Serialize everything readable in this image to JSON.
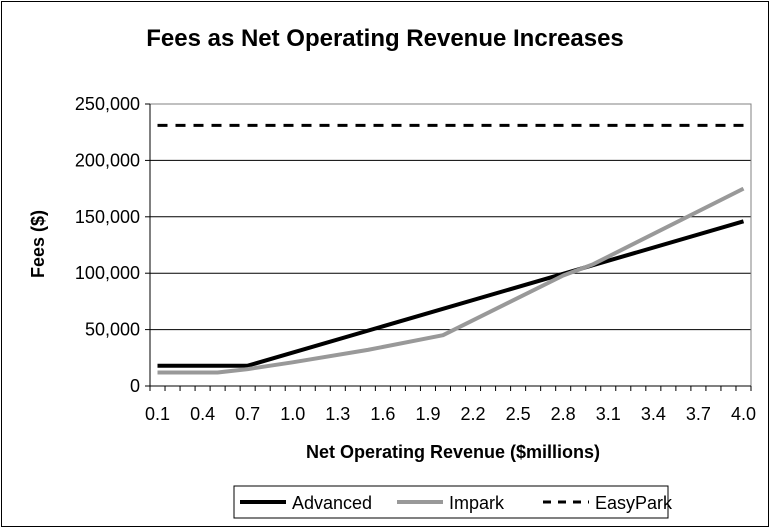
{
  "chart_data": {
    "type": "line",
    "title": "Fees as Net Operating Revenue Increases",
    "xlabel": "Net Operating Revenue ($millions)",
    "ylabel": "Fees ($)",
    "ylim": [
      0,
      250000
    ],
    "y_ticks": [
      0,
      50000,
      100000,
      150000,
      200000,
      250000
    ],
    "y_tick_labels": [
      "0",
      "50,000",
      "100,000",
      "150,000",
      "200,000",
      "250,000"
    ],
    "x_min": 0.1,
    "x_max": 4.0,
    "x_step": 0.1,
    "x_tick_labels": [
      "0.1",
      "0.4",
      "0.7",
      "1.0",
      "1.3",
      "1.6",
      "1.9",
      "2.2",
      "2.5",
      "2.8",
      "3.1",
      "3.4",
      "3.7",
      "4.0"
    ],
    "grid": "horizontal",
    "legend_position": "bottom",
    "series": [
      {
        "name": "Advanced",
        "color": "#000000",
        "style": "solid",
        "points": [
          [
            0.1,
            18000
          ],
          [
            0.7,
            18000
          ],
          [
            4.0,
            146000
          ]
        ]
      },
      {
        "name": "Impark",
        "color": "#999999",
        "style": "solid",
        "points": [
          [
            0.1,
            12000
          ],
          [
            0.5,
            12000
          ],
          [
            0.7,
            15000
          ],
          [
            1.0,
            21000
          ],
          [
            1.5,
            32000
          ],
          [
            2.0,
            45000
          ],
          [
            2.8,
            98000
          ],
          [
            3.0,
            108000
          ],
          [
            4.0,
            175000
          ]
        ]
      },
      {
        "name": "EasyPark",
        "color": "#000000",
        "style": "dashed",
        "points": [
          [
            0.1,
            231000
          ],
          [
            4.0,
            231000
          ]
        ]
      }
    ]
  }
}
